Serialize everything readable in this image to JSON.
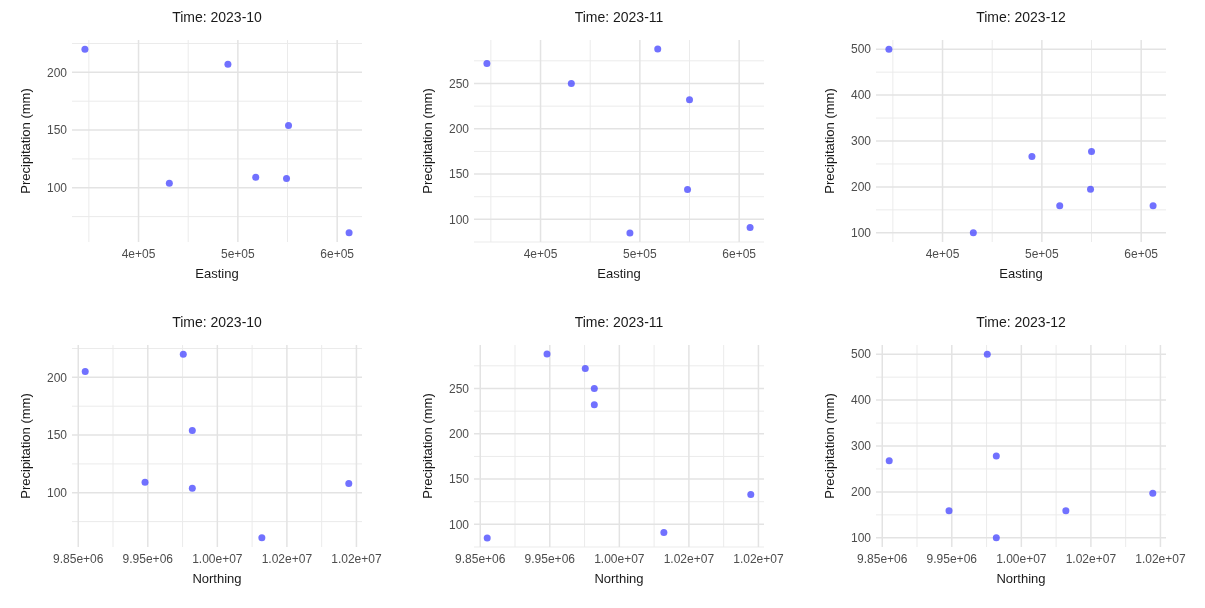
{
  "chart_data": [
    {
      "type": "scatter",
      "title": "Time: 2023-10",
      "xlabel": "Easting",
      "ylabel": "Precipitation (mm)",
      "x": [
        346000,
        490000,
        551000,
        518000,
        549000,
        431000,
        612000
      ],
      "series": [
        {
          "color": "#4d4dff",
          "values": [
            220,
            207,
            154,
            109,
            108,
            104,
            61
          ]
        }
      ],
      "xlim": [
        333000,
        625000
      ],
      "xticks": [
        {
          "value": 400000,
          "label": "4e+05"
        },
        {
          "value": 500000,
          "label": "5e+05"
        },
        {
          "value": 600000,
          "label": "6e+05"
        }
      ],
      "ylim": [
        53,
        228
      ],
      "yticks": [
        100,
        150,
        200
      ],
      "grid": true,
      "marker": "circle"
    },
    {
      "type": "scatter",
      "title": "Time: 2023-11",
      "xlabel": "Easting",
      "ylabel": "Precipitation (mm)",
      "x": [
        346000,
        490000,
        550000,
        518000,
        548000,
        431000,
        611000
      ],
      "series": [
        {
          "color": "#4d4dff",
          "values": [
            272,
            85,
            232,
            288,
            133,
            250,
            91
          ]
        }
      ],
      "xlim": [
        333000,
        625000
      ],
      "xticks": [
        {
          "value": 400000,
          "label": "4e+05"
        },
        {
          "value": 500000,
          "label": "5e+05"
        },
        {
          "value": 600000,
          "label": "6e+05"
        }
      ],
      "ylim": [
        75,
        298
      ],
      "yticks": [
        100,
        150,
        200,
        250
      ],
      "grid": true,
      "marker": "circle"
    },
    {
      "type": "scatter",
      "title": "Time: 2023-12",
      "xlabel": "Easting",
      "ylabel": "Precipitation (mm)",
      "x": [
        346000,
        490000,
        550000,
        518000,
        549000,
        431000,
        612000
      ],
      "series": [
        {
          "color": "#4d4dff",
          "values": [
            500,
            266,
            277,
            159,
            195,
            100,
            159
          ]
        }
      ],
      "xlim": [
        333000,
        625000
      ],
      "xticks": [
        {
          "value": 400000,
          "label": "4e+05"
        },
        {
          "value": 500000,
          "label": "5e+05"
        },
        {
          "value": 600000,
          "label": "6e+05"
        }
      ],
      "ylim": [
        80,
        520
      ],
      "yticks": [
        100,
        200,
        300,
        400,
        500
      ],
      "grid": true,
      "marker": "circle"
    },
    {
      "type": "scatter",
      "title": "Time: 2023-10",
      "xlabel": "Northing",
      "ylabel": "Precipitation (mm)",
      "x": [
        10001000,
        9860000,
        10014000,
        9946000,
        10239000,
        10014000,
        10114000
      ],
      "series": [
        {
          "color": "#4d4dff",
          "values": [
            220,
            205,
            154,
            109,
            108,
            104,
            61
          ]
        }
      ],
      "xlim": [
        9841000,
        10258000
      ],
      "xticks": [
        {
          "value": 9850000,
          "label": "9.85e+06"
        },
        {
          "value": 9950000,
          "label": "9.95e+06"
        },
        {
          "value": 10050000,
          "label": "1.00e+07"
        },
        {
          "value": 10150000,
          "label": "1.02e+07"
        },
        {
          "value": 10250000,
          "label": "1.02e+07"
        }
      ],
      "ylim": [
        53,
        228
      ],
      "yticks": [
        100,
        150,
        200
      ],
      "grid": true,
      "marker": "circle"
    },
    {
      "type": "scatter",
      "title": "Time: 2023-11",
      "xlabel": "Northing",
      "ylabel": "Precipitation (mm)",
      "x": [
        10001000,
        9860000,
        10014000,
        9946000,
        10239000,
        10014000,
        10114000
      ],
      "series": [
        {
          "color": "#4d4dff",
          "values": [
            272,
            85,
            232,
            288,
            133,
            250,
            91
          ]
        }
      ],
      "xlim": [
        9841000,
        10258000
      ],
      "xticks": [
        {
          "value": 9850000,
          "label": "9.85e+06"
        },
        {
          "value": 9950000,
          "label": "9.95e+06"
        },
        {
          "value": 10050000,
          "label": "1.00e+07"
        },
        {
          "value": 10150000,
          "label": "1.02e+07"
        },
        {
          "value": 10250000,
          "label": "1.02e+07"
        }
      ],
      "ylim": [
        75,
        298
      ],
      "yticks": [
        100,
        150,
        200,
        250
      ],
      "grid": true,
      "marker": "circle"
    },
    {
      "type": "scatter",
      "title": "Time: 2023-12",
      "xlabel": "Northing",
      "ylabel": "Precipitation (mm)",
      "x": [
        10001000,
        9860000,
        10014000,
        9946000,
        10239000,
        10014000,
        10114000
      ],
      "series": [
        {
          "color": "#4d4dff",
          "values": [
            500,
            268,
            278,
            159,
            197,
            100,
            159
          ]
        }
      ],
      "xlim": [
        9841000,
        10258000
      ],
      "xticks": [
        {
          "value": 9850000,
          "label": "9.85e+06"
        },
        {
          "value": 9950000,
          "label": "9.95e+06"
        },
        {
          "value": 10050000,
          "label": "1.00e+07"
        },
        {
          "value": 10150000,
          "label": "1.02e+07"
        },
        {
          "value": 10250000,
          "label": "1.02e+07"
        }
      ],
      "ylim": [
        80,
        520
      ],
      "yticks": [
        100,
        200,
        300,
        400,
        500
      ],
      "grid": true,
      "marker": "circle"
    }
  ]
}
